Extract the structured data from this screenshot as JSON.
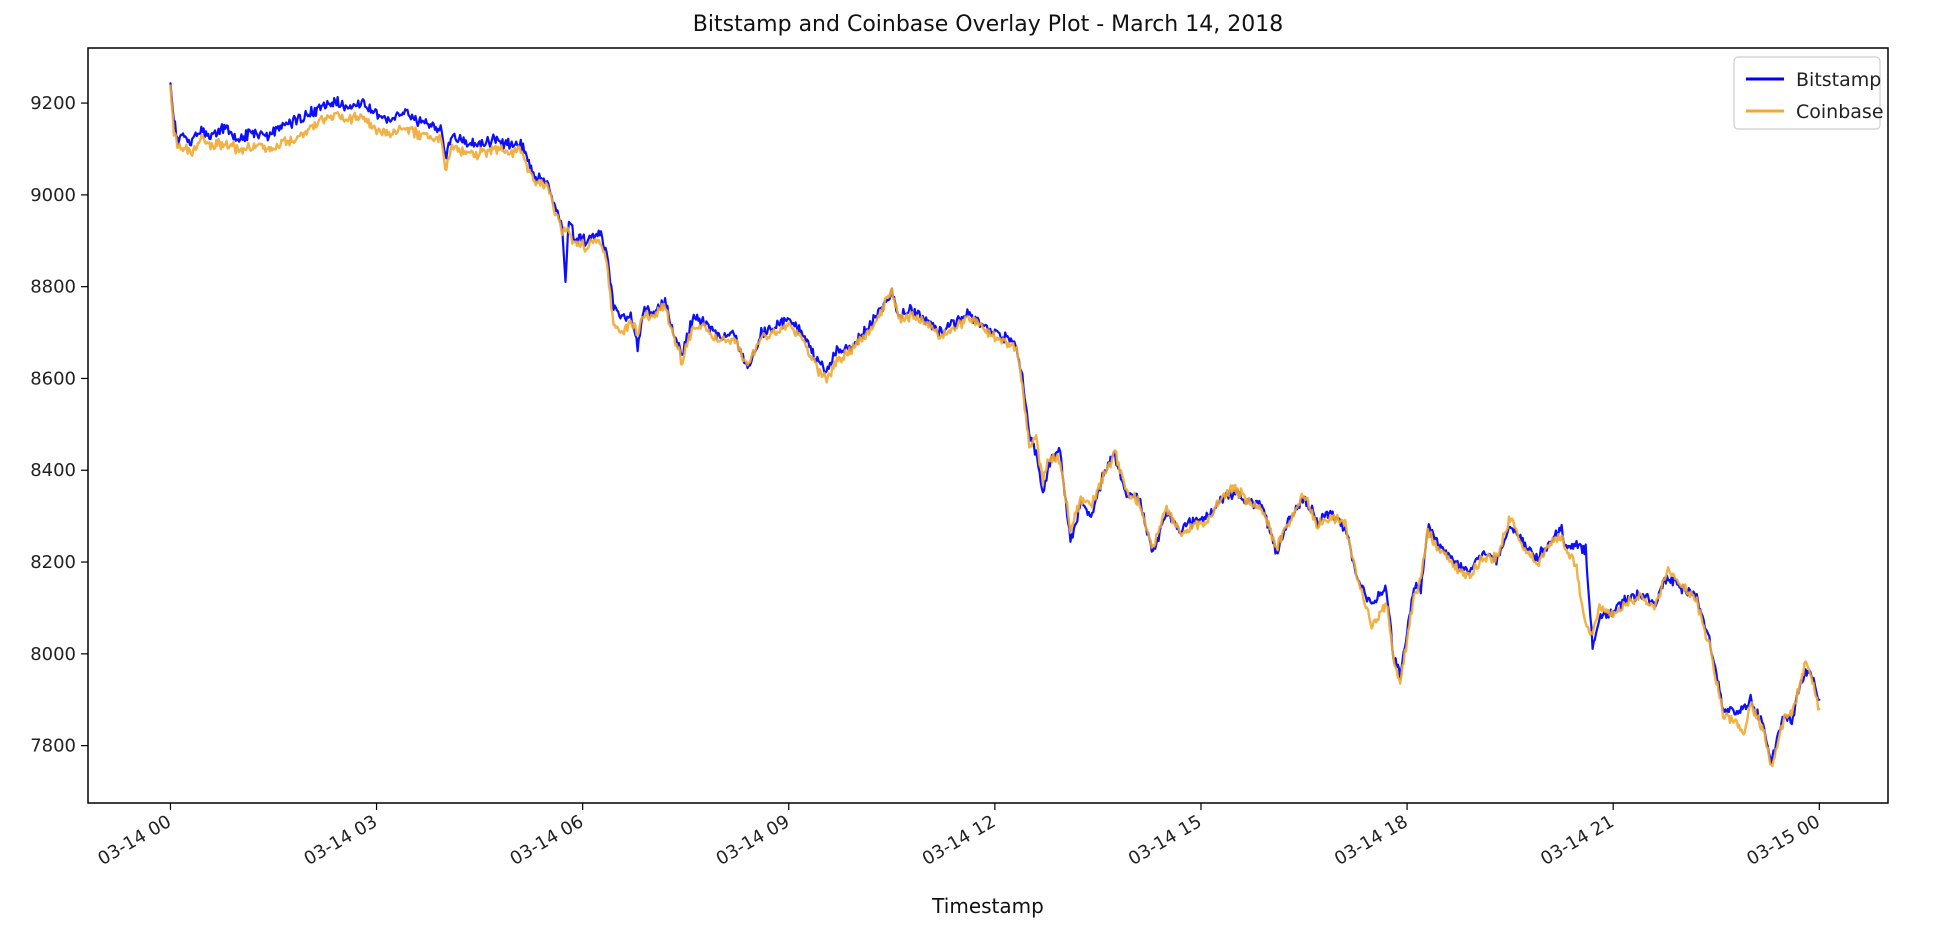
{
  "chart_data": {
    "type": "line",
    "title": "Bitstamp and Coinbase Overlay Plot - March 14, 2018",
    "xlabel": "Timestamp",
    "ylabel": "",
    "x_tick_labels": [
      "03-14 00",
      "03-14 03",
      "03-14 06",
      "03-14 09",
      "03-14 12",
      "03-14 15",
      "03-14 18",
      "03-14 21",
      "03-15 00"
    ],
    "x_tick_hours": [
      0,
      3,
      6,
      9,
      12,
      15,
      18,
      21,
      24
    ],
    "xlim_hours": [
      -1.2,
      25.0
    ],
    "y_ticks": [
      7800,
      8000,
      8200,
      8400,
      8600,
      8800,
      9000,
      9200
    ],
    "ylim": [
      7675,
      9320
    ],
    "grid": false,
    "legend_position": "top-right",
    "x_unit": "hours after 03-14 00:00",
    "series": [
      {
        "name": "Bitstamp",
        "color": "#0000ff",
        "points": [
          [
            0.0,
            9250
          ],
          [
            0.05,
            9160
          ],
          [
            0.1,
            9120
          ],
          [
            0.2,
            9130
          ],
          [
            0.3,
            9115
          ],
          [
            0.45,
            9140
          ],
          [
            0.6,
            9130
          ],
          [
            0.8,
            9145
          ],
          [
            1.0,
            9120
          ],
          [
            1.2,
            9135
          ],
          [
            1.4,
            9125
          ],
          [
            1.6,
            9150
          ],
          [
            1.8,
            9160
          ],
          [
            2.0,
            9175
          ],
          [
            2.2,
            9190
          ],
          [
            2.4,
            9205
          ],
          [
            2.6,
            9185
          ],
          [
            2.8,
            9200
          ],
          [
            3.0,
            9175
          ],
          [
            3.2,
            9165
          ],
          [
            3.4,
            9180
          ],
          [
            3.6,
            9160
          ],
          [
            3.8,
            9150
          ],
          [
            3.95,
            9145
          ],
          [
            4.0,
            9080
          ],
          [
            4.1,
            9130
          ],
          [
            4.3,
            9115
          ],
          [
            4.5,
            9110
          ],
          [
            4.7,
            9120
          ],
          [
            4.9,
            9110
          ],
          [
            5.1,
            9115
          ],
          [
            5.3,
            9040
          ],
          [
            5.5,
            9030
          ],
          [
            5.6,
            8970
          ],
          [
            5.7,
            8940
          ],
          [
            5.75,
            8810
          ],
          [
            5.8,
            8950
          ],
          [
            5.9,
            8900
          ],
          [
            6.0,
            8910
          ],
          [
            6.05,
            8895
          ],
          [
            6.15,
            8910
          ],
          [
            6.25,
            8920
          ],
          [
            6.35,
            8870
          ],
          [
            6.45,
            8760
          ],
          [
            6.55,
            8730
          ],
          [
            6.7,
            8740
          ],
          [
            6.8,
            8665
          ],
          [
            6.9,
            8760
          ],
          [
            7.0,
            8740
          ],
          [
            7.2,
            8770
          ],
          [
            7.3,
            8710
          ],
          [
            7.45,
            8650
          ],
          [
            7.6,
            8730
          ],
          [
            7.8,
            8720
          ],
          [
            8.0,
            8690
          ],
          [
            8.2,
            8700
          ],
          [
            8.4,
            8620
          ],
          [
            8.6,
            8700
          ],
          [
            8.8,
            8710
          ],
          [
            9.0,
            8730
          ],
          [
            9.2,
            8700
          ],
          [
            9.4,
            8640
          ],
          [
            9.55,
            8620
          ],
          [
            9.7,
            8660
          ],
          [
            9.9,
            8670
          ],
          [
            10.1,
            8700
          ],
          [
            10.3,
            8740
          ],
          [
            10.5,
            8790
          ],
          [
            10.6,
            8740
          ],
          [
            10.8,
            8750
          ],
          [
            11.0,
            8730
          ],
          [
            11.2,
            8700
          ],
          [
            11.4,
            8720
          ],
          [
            11.6,
            8740
          ],
          [
            11.8,
            8720
          ],
          [
            12.0,
            8700
          ],
          [
            12.3,
            8680
          ],
          [
            12.4,
            8600
          ],
          [
            12.5,
            8480
          ],
          [
            12.6,
            8440
          ],
          [
            12.7,
            8350
          ],
          [
            12.8,
            8420
          ],
          [
            12.95,
            8440
          ],
          [
            13.1,
            8240
          ],
          [
            13.25,
            8330
          ],
          [
            13.4,
            8300
          ],
          [
            13.6,
            8400
          ],
          [
            13.75,
            8430
          ],
          [
            13.9,
            8350
          ],
          [
            14.1,
            8340
          ],
          [
            14.3,
            8220
          ],
          [
            14.5,
            8310
          ],
          [
            14.7,
            8270
          ],
          [
            14.9,
            8290
          ],
          [
            15.1,
            8300
          ],
          [
            15.3,
            8340
          ],
          [
            15.5,
            8350
          ],
          [
            15.7,
            8330
          ],
          [
            15.9,
            8320
          ],
          [
            16.1,
            8220
          ],
          [
            16.3,
            8300
          ],
          [
            16.5,
            8340
          ],
          [
            16.7,
            8290
          ],
          [
            16.9,
            8310
          ],
          [
            17.1,
            8270
          ],
          [
            17.3,
            8150
          ],
          [
            17.5,
            8110
          ],
          [
            17.7,
            8140
          ],
          [
            17.8,
            8000
          ],
          [
            17.9,
            7950
          ],
          [
            18.1,
            8150
          ],
          [
            18.2,
            8140
          ],
          [
            18.3,
            8280
          ],
          [
            18.5,
            8230
          ],
          [
            18.7,
            8200
          ],
          [
            18.9,
            8180
          ],
          [
            19.1,
            8220
          ],
          [
            19.3,
            8200
          ],
          [
            19.5,
            8280
          ],
          [
            19.7,
            8240
          ],
          [
            19.9,
            8210
          ],
          [
            20.1,
            8250
          ],
          [
            20.25,
            8270
          ],
          [
            20.3,
            8240
          ],
          [
            20.6,
            8230
          ],
          [
            20.7,
            8010
          ],
          [
            20.8,
            8080
          ],
          [
            21.0,
            8090
          ],
          [
            21.2,
            8120
          ],
          [
            21.4,
            8130
          ],
          [
            21.6,
            8110
          ],
          [
            21.8,
            8170
          ],
          [
            22.0,
            8140
          ],
          [
            22.2,
            8130
          ],
          [
            22.4,
            8030
          ],
          [
            22.5,
            7960
          ],
          [
            22.6,
            7880
          ],
          [
            22.8,
            7870
          ],
          [
            23.0,
            7900
          ],
          [
            23.2,
            7840
          ],
          [
            23.3,
            7760
          ],
          [
            23.4,
            7820
          ],
          [
            23.5,
            7870
          ],
          [
            23.6,
            7850
          ],
          [
            23.7,
            7920
          ],
          [
            23.8,
            7960
          ],
          [
            23.9,
            7950
          ],
          [
            24.0,
            7900
          ]
        ]
      },
      {
        "name": "Coinbase",
        "color": "#f0a830",
        "points": [
          [
            0.0,
            9230
          ],
          [
            0.05,
            9140
          ],
          [
            0.1,
            9110
          ],
          [
            0.2,
            9100
          ],
          [
            0.3,
            9090
          ],
          [
            0.45,
            9120
          ],
          [
            0.6,
            9105
          ],
          [
            0.8,
            9115
          ],
          [
            1.0,
            9095
          ],
          [
            1.2,
            9110
          ],
          [
            1.4,
            9100
          ],
          [
            1.6,
            9115
          ],
          [
            1.8,
            9120
          ],
          [
            2.0,
            9140
          ],
          [
            2.2,
            9160
          ],
          [
            2.4,
            9175
          ],
          [
            2.6,
            9165
          ],
          [
            2.8,
            9170
          ],
          [
            3.0,
            9140
          ],
          [
            3.2,
            9135
          ],
          [
            3.4,
            9150
          ],
          [
            3.6,
            9130
          ],
          [
            3.8,
            9125
          ],
          [
            3.95,
            9120
          ],
          [
            4.0,
            9060
          ],
          [
            4.1,
            9105
          ],
          [
            4.3,
            9095
          ],
          [
            4.5,
            9090
          ],
          [
            4.7,
            9100
          ],
          [
            4.9,
            9095
          ],
          [
            5.1,
            9095
          ],
          [
            5.3,
            9030
          ],
          [
            5.5,
            9020
          ],
          [
            5.6,
            8960
          ],
          [
            5.7,
            8925
          ],
          [
            5.8,
            8920
          ],
          [
            5.9,
            8890
          ],
          [
            6.0,
            8895
          ],
          [
            6.05,
            8880
          ],
          [
            6.15,
            8900
          ],
          [
            6.25,
            8905
          ],
          [
            6.35,
            8850
          ],
          [
            6.45,
            8720
          ],
          [
            6.55,
            8700
          ],
          [
            6.7,
            8720
          ],
          [
            6.8,
            8700
          ],
          [
            6.9,
            8740
          ],
          [
            7.0,
            8735
          ],
          [
            7.2,
            8760
          ],
          [
            7.3,
            8700
          ],
          [
            7.45,
            8635
          ],
          [
            7.6,
            8715
          ],
          [
            7.8,
            8710
          ],
          [
            8.0,
            8675
          ],
          [
            8.2,
            8690
          ],
          [
            8.4,
            8630
          ],
          [
            8.6,
            8690
          ],
          [
            8.8,
            8700
          ],
          [
            9.0,
            8720
          ],
          [
            9.2,
            8685
          ],
          [
            9.4,
            8625
          ],
          [
            9.55,
            8595
          ],
          [
            9.7,
            8640
          ],
          [
            9.9,
            8660
          ],
          [
            10.1,
            8690
          ],
          [
            10.3,
            8730
          ],
          [
            10.5,
            8795
          ],
          [
            10.6,
            8730
          ],
          [
            10.8,
            8740
          ],
          [
            11.0,
            8720
          ],
          [
            11.2,
            8690
          ],
          [
            11.4,
            8710
          ],
          [
            11.6,
            8730
          ],
          [
            11.8,
            8715
          ],
          [
            12.0,
            8690
          ],
          [
            12.3,
            8670
          ],
          [
            12.4,
            8590
          ],
          [
            12.5,
            8450
          ],
          [
            12.6,
            8470
          ],
          [
            12.7,
            8380
          ],
          [
            12.8,
            8430
          ],
          [
            12.95,
            8420
          ],
          [
            13.1,
            8270
          ],
          [
            13.25,
            8340
          ],
          [
            13.4,
            8320
          ],
          [
            13.6,
            8390
          ],
          [
            13.75,
            8440
          ],
          [
            13.9,
            8360
          ],
          [
            14.1,
            8330
          ],
          [
            14.3,
            8230
          ],
          [
            14.5,
            8320
          ],
          [
            14.7,
            8260
          ],
          [
            14.9,
            8280
          ],
          [
            15.1,
            8290
          ],
          [
            15.3,
            8340
          ],
          [
            15.5,
            8360
          ],
          [
            15.7,
            8330
          ],
          [
            15.9,
            8310
          ],
          [
            16.1,
            8230
          ],
          [
            16.3,
            8290
          ],
          [
            16.5,
            8350
          ],
          [
            16.7,
            8280
          ],
          [
            16.9,
            8300
          ],
          [
            17.1,
            8280
          ],
          [
            17.3,
            8150
          ],
          [
            17.5,
            8060
          ],
          [
            17.7,
            8110
          ],
          [
            17.8,
            7990
          ],
          [
            17.9,
            7935
          ],
          [
            18.1,
            8130
          ],
          [
            18.2,
            8160
          ],
          [
            18.3,
            8270
          ],
          [
            18.5,
            8220
          ],
          [
            18.7,
            8190
          ],
          [
            18.9,
            8170
          ],
          [
            19.1,
            8210
          ],
          [
            19.3,
            8210
          ],
          [
            19.5,
            8295
          ],
          [
            19.7,
            8230
          ],
          [
            19.9,
            8200
          ],
          [
            20.1,
            8240
          ],
          [
            20.25,
            8260
          ],
          [
            20.3,
            8230
          ],
          [
            20.45,
            8200
          ],
          [
            20.6,
            8060
          ],
          [
            20.7,
            8050
          ],
          [
            20.8,
            8100
          ],
          [
            21.0,
            8085
          ],
          [
            21.2,
            8110
          ],
          [
            21.4,
            8120
          ],
          [
            21.6,
            8100
          ],
          [
            21.8,
            8180
          ],
          [
            22.0,
            8150
          ],
          [
            22.2,
            8120
          ],
          [
            22.4,
            8020
          ],
          [
            22.5,
            7940
          ],
          [
            22.6,
            7870
          ],
          [
            22.8,
            7850
          ],
          [
            22.9,
            7820
          ],
          [
            23.0,
            7890
          ],
          [
            23.2,
            7830
          ],
          [
            23.3,
            7750
          ],
          [
            23.4,
            7810
          ],
          [
            23.5,
            7860
          ],
          [
            23.6,
            7870
          ],
          [
            23.7,
            7920
          ],
          [
            23.8,
            7980
          ],
          [
            23.9,
            7940
          ],
          [
            24.0,
            7880
          ]
        ]
      }
    ]
  }
}
